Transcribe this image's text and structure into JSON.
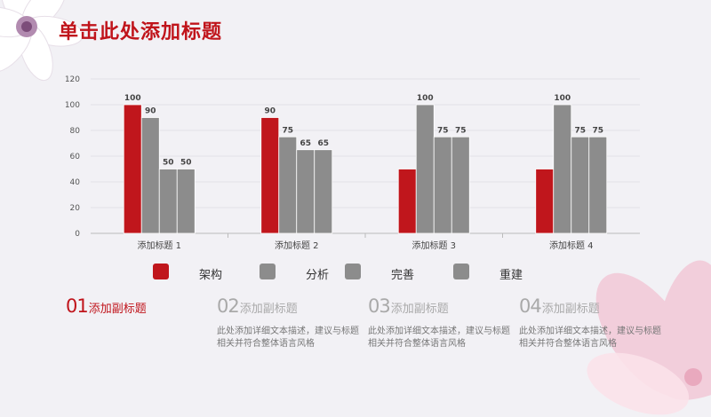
{
  "title": "单击此处添加标题",
  "chart_data": {
    "type": "bar",
    "categories": [
      "添加标题 1",
      "添加标题 2",
      "添加标题 3",
      "添加标题 4"
    ],
    "series": [
      {
        "name": "架构",
        "color": "#c0161c",
        "values": [
          100,
          90,
          50,
          50
        ],
        "labels": [
          "100",
          "90",
          "",
          ""
        ]
      },
      {
        "name": "分析",
        "color": "#8c8c8c",
        "values": [
          90,
          75,
          100,
          100
        ],
        "labels": [
          "90",
          "75",
          "100",
          "100"
        ]
      },
      {
        "name": "完善",
        "color": "#8c8c8c",
        "values": [
          50,
          65,
          75,
          75
        ],
        "labels": [
          "50",
          "65",
          "75",
          "75"
        ]
      },
      {
        "name": "重建",
        "color": "#8c8c8c",
        "values": [
          50,
          65,
          75,
          75
        ],
        "labels": [
          "50",
          "65",
          "75",
          "75"
        ]
      }
    ],
    "ylim": [
      0,
      120
    ],
    "yticks": [
      "0",
      "20",
      "40",
      "60",
      "80",
      "100",
      "120"
    ],
    "grid": true,
    "legend": "bottom"
  },
  "cards": [
    {
      "number": "01",
      "subtitle": "添加副标题",
      "desc": "",
      "active": true
    },
    {
      "number": "02",
      "subtitle": "添加副标题",
      "desc": "此处添加详细文本描述，建议与标题相关并符合整体语言风格",
      "active": false
    },
    {
      "number": "03",
      "subtitle": "添加副标题",
      "desc": "此处添加详细文本描述，建议与标题相关并符合整体语言风格",
      "active": false
    },
    {
      "number": "04",
      "subtitle": "添加副标题",
      "desc": "此处添加详细文本描述，建议与标题相关并符合整体语言风格",
      "active": false
    }
  ]
}
